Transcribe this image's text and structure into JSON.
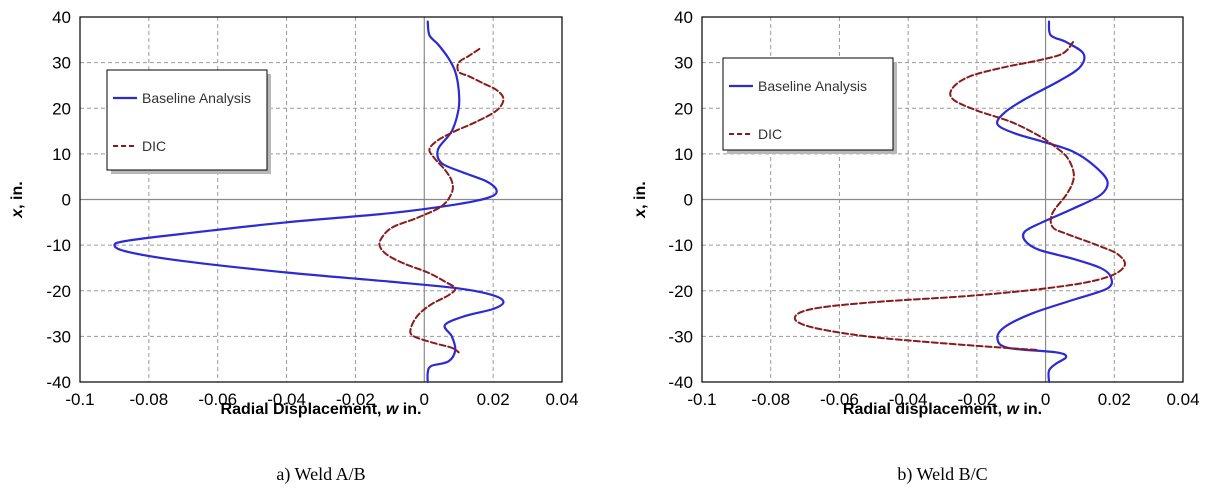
{
  "chart_data": [
    {
      "type": "line",
      "caption": "a) Weld A/B",
      "xlabel": "Radial Displacement, ",
      "xlabel_var": "w",
      "xlabel_unit": " in.",
      "ylabel_var": "x",
      "ylabel_unit": ", in.",
      "xlim": [
        -0.1,
        0.04
      ],
      "ylim": [
        -40,
        40
      ],
      "xticks": [
        -0.1,
        -0.08,
        -0.06,
        -0.04,
        -0.02,
        0,
        0.02,
        0.04
      ],
      "xtick_labels": [
        "-0.1",
        "-0.08",
        "-0.06",
        "-0.04",
        "-0.02",
        "0",
        "0.02",
        "0.04"
      ],
      "yticks": [
        -40,
        -30,
        -20,
        -10,
        0,
        10,
        20,
        30,
        40
      ],
      "ytick_labels": [
        "-40",
        "-30",
        "-20",
        "-10",
        "0",
        "10",
        "20",
        "30",
        "40"
      ],
      "grid": true,
      "legend_position": "upper-left",
      "series": [
        {
          "name": "Baseline Analysis",
          "color": "#2b2bd6",
          "style": "solid",
          "points": [
            [
              0.001,
              39
            ],
            [
              0.0015,
              36
            ],
            [
              0.004,
              34
            ],
            [
              0.007,
              31
            ],
            [
              0.009,
              28
            ],
            [
              0.01,
              24
            ],
            [
              0.01,
              20
            ],
            [
              0.008,
              15
            ],
            [
              0.004,
              11
            ],
            [
              0.005,
              8
            ],
            [
              0.011,
              6
            ],
            [
              0.018,
              4
            ],
            [
              0.021,
              2
            ],
            [
              0.019,
              0.5
            ],
            [
              0.01,
              -1
            ],
            [
              -0.01,
              -3
            ],
            [
              -0.04,
              -5
            ],
            [
              -0.07,
              -7.5
            ],
            [
              -0.086,
              -9
            ],
            [
              -0.09,
              -10
            ],
            [
              -0.086,
              -11.5
            ],
            [
              -0.07,
              -13.5
            ],
            [
              -0.04,
              -16
            ],
            [
              -0.01,
              -18
            ],
            [
              0.01,
              -19.5
            ],
            [
              0.02,
              -21
            ],
            [
              0.023,
              -22.5
            ],
            [
              0.02,
              -24
            ],
            [
              0.012,
              -25.5
            ],
            [
              0.006,
              -27.5
            ],
            [
              0.008,
              -30
            ],
            [
              0.009,
              -33
            ],
            [
              0.007,
              -35.5
            ],
            [
              0.002,
              -36.5
            ],
            [
              0.001,
              -38
            ],
            [
              0.001,
              -40
            ]
          ]
        },
        {
          "name": "DIC",
          "color": "#8b1a1a",
          "style": "dashed",
          "points": [
            [
              0.016,
              33
            ],
            [
              0.013,
              31.5
            ],
            [
              0.01,
              30
            ],
            [
              0.01,
              28
            ],
            [
              0.013,
              27
            ],
            [
              0.017,
              25.5
            ],
            [
              0.021,
              24
            ],
            [
              0.023,
              22
            ],
            [
              0.021,
              19.5
            ],
            [
              0.015,
              17
            ],
            [
              0.009,
              15
            ],
            [
              0.004,
              13
            ],
            [
              0.0015,
              11
            ],
            [
              0.003,
              9
            ],
            [
              0.006,
              6.5
            ],
            [
              0.008,
              4
            ],
            [
              0.008,
              1.5
            ],
            [
              0.005,
              -1.5
            ],
            [
              -0.002,
              -4
            ],
            [
              -0.009,
              -6
            ],
            [
              -0.012,
              -8
            ],
            [
              -0.013,
              -10
            ],
            [
              -0.011,
              -12
            ],
            [
              -0.006,
              -14
            ],
            [
              0.001,
              -16
            ],
            [
              0.006,
              -18
            ],
            [
              0.009,
              -19.5
            ],
            [
              0.007,
              -21
            ],
            [
              0.002,
              -23
            ],
            [
              -0.002,
              -25.5
            ],
            [
              -0.004,
              -28.5
            ],
            [
              -0.003,
              -30
            ],
            [
              0.003,
              -31.5
            ],
            [
              0.008,
              -32.5
            ],
            [
              0.01,
              -33.5
            ]
          ]
        }
      ]
    },
    {
      "type": "line",
      "caption": "b)  Weld B/C",
      "xlabel": "Radial displacement, ",
      "xlabel_var": "w",
      "xlabel_unit": " in.",
      "ylabel_var": "x",
      "ylabel_unit": ", in.",
      "xlim": [
        -0.1,
        0.04
      ],
      "ylim": [
        -40,
        40
      ],
      "xticks": [
        -0.1,
        -0.08,
        -0.06,
        -0.04,
        -0.02,
        0,
        0.02,
        0.04
      ],
      "xtick_labels": [
        "-0.1",
        "-0.08",
        "-0.06",
        "-0.04",
        "-0.02",
        "0",
        "0.02",
        "0.04"
      ],
      "yticks": [
        -40,
        -30,
        -20,
        -10,
        0,
        10,
        20,
        30,
        40
      ],
      "ytick_labels": [
        "-40",
        "-30",
        "-20",
        "-10",
        "0",
        "10",
        "20",
        "30",
        "40"
      ],
      "grid": true,
      "legend_position": "upper-left",
      "series": [
        {
          "name": "Baseline Analysis",
          "color": "#2b2bd6",
          "style": "solid",
          "points": [
            [
              0.001,
              39
            ],
            [
              0.0015,
              36
            ],
            [
              0.006,
              34.5
            ],
            [
              0.011,
              32
            ],
            [
              0.01,
              29
            ],
            [
              0.004,
              26
            ],
            [
              -0.006,
              22
            ],
            [
              -0.012,
              19
            ],
            [
              -0.014,
              16.5
            ],
            [
              -0.009,
              14.5
            ],
            [
              0,
              12.5
            ],
            [
              0.008,
              10.5
            ],
            [
              0.014,
              7.5
            ],
            [
              0.018,
              4
            ],
            [
              0.016,
              1
            ],
            [
              0.008,
              -2
            ],
            [
              -0.001,
              -5
            ],
            [
              -0.006,
              -7
            ],
            [
              -0.006,
              -9
            ],
            [
              -0.002,
              -11
            ],
            [
              0.008,
              -13
            ],
            [
              0.016,
              -15
            ],
            [
              0.019,
              -17
            ],
            [
              0.018,
              -19.5
            ],
            [
              0.008,
              -22
            ],
            [
              -0.004,
              -25
            ],
            [
              -0.012,
              -28
            ],
            [
              -0.014,
              -30.5
            ],
            [
              -0.011,
              -32.5
            ],
            [
              0.003,
              -33.5
            ],
            [
              0.006,
              -34.5
            ],
            [
              0.003,
              -36
            ],
            [
              0.001,
              -37.5
            ],
            [
              0.001,
              -40
            ]
          ]
        },
        {
          "name": "DIC",
          "color": "#8b1a1a",
          "style": "dashed",
          "points": [
            [
              0.008,
              34.5
            ],
            [
              0.005,
              32
            ],
            [
              -0.002,
              30.5
            ],
            [
              -0.012,
              29
            ],
            [
              -0.022,
              27
            ],
            [
              -0.027,
              24.5
            ],
            [
              -0.027,
              22
            ],
            [
              -0.02,
              19.5
            ],
            [
              -0.01,
              17
            ],
            [
              -0.002,
              14
            ],
            [
              0.002,
              12
            ],
            [
              0.006,
              9.5
            ],
            [
              0.008,
              6.5
            ],
            [
              0.008,
              4
            ],
            [
              0.006,
              1
            ],
            [
              0.002,
              -3
            ],
            [
              0.002,
              -6
            ],
            [
              0.006,
              -7.5
            ],
            [
              0.015,
              -10
            ],
            [
              0.021,
              -12
            ],
            [
              0.023,
              -14.5
            ],
            [
              0.018,
              -17
            ],
            [
              0.005,
              -19
            ],
            [
              -0.02,
              -21
            ],
            [
              -0.05,
              -22.5
            ],
            [
              -0.068,
              -24
            ],
            [
              -0.073,
              -26
            ],
            [
              -0.068,
              -28
            ],
            [
              -0.052,
              -30
            ],
            [
              -0.03,
              -31.5
            ],
            [
              -0.012,
              -32.5
            ],
            [
              -0.002,
              -33
            ]
          ]
        }
      ]
    }
  ]
}
